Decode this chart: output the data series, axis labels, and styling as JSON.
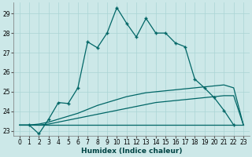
{
  "title": "",
  "xlabel": "Humidex (Indice chaleur)",
  "bg_color": "#cce8e8",
  "line_color": "#006666",
  "grid_color": "#aad4d4",
  "ylim": [
    22.75,
    29.55
  ],
  "xlim": [
    -0.6,
    23.6
  ],
  "yticks": [
    23,
    24,
    25,
    26,
    27,
    28,
    29
  ],
  "xticks": [
    0,
    1,
    2,
    3,
    4,
    5,
    6,
    7,
    8,
    9,
    10,
    11,
    12,
    13,
    14,
    15,
    16,
    17,
    18,
    19,
    20,
    21,
    22,
    23
  ],
  "series1_x": [
    1,
    2,
    3,
    4,
    5,
    6,
    7,
    8,
    9,
    10,
    11,
    12,
    13,
    14,
    15,
    16,
    17,
    18,
    19,
    20,
    21,
    22
  ],
  "series1_y": [
    23.3,
    22.85,
    23.6,
    24.45,
    24.4,
    25.2,
    27.55,
    27.25,
    28.0,
    29.3,
    28.5,
    27.8,
    28.75,
    28.0,
    28.0,
    27.5,
    27.3,
    25.65,
    25.2,
    24.7,
    24.05,
    23.3
  ],
  "series2_x": [
    0,
    1,
    2,
    3,
    4,
    5,
    6,
    7,
    8,
    9,
    10,
    11,
    12,
    13,
    14,
    15,
    16,
    17,
    18,
    19,
    20,
    21,
    22,
    23
  ],
  "series2_y": [
    23.3,
    23.3,
    23.3,
    23.3,
    23.3,
    23.3,
    23.3,
    23.3,
    23.3,
    23.3,
    23.3,
    23.3,
    23.3,
    23.3,
    23.3,
    23.3,
    23.3,
    23.3,
    23.3,
    23.3,
    23.3,
    23.3,
    23.3,
    23.3
  ],
  "series3_x": [
    0,
    1,
    2,
    3,
    4,
    5,
    6,
    7,
    8,
    9,
    10,
    11,
    12,
    13,
    14,
    15,
    16,
    17,
    18,
    19,
    20,
    21,
    22,
    23
  ],
  "series3_y": [
    23.3,
    23.3,
    23.35,
    23.45,
    23.6,
    23.75,
    23.9,
    24.1,
    24.3,
    24.45,
    24.6,
    24.75,
    24.85,
    24.95,
    25.0,
    25.05,
    25.1,
    25.15,
    25.2,
    25.25,
    25.3,
    25.35,
    25.2,
    23.3
  ],
  "series4_x": [
    0,
    1,
    2,
    3,
    4,
    5,
    6,
    7,
    8,
    9,
    10,
    11,
    12,
    13,
    14,
    15,
    16,
    17,
    18,
    19,
    20,
    21,
    22,
    23
  ],
  "series4_y": [
    23.3,
    23.3,
    23.3,
    23.35,
    23.45,
    23.55,
    23.65,
    23.75,
    23.85,
    23.95,
    24.05,
    24.15,
    24.25,
    24.35,
    24.45,
    24.5,
    24.55,
    24.6,
    24.65,
    24.7,
    24.75,
    24.8,
    24.8,
    23.3
  ]
}
